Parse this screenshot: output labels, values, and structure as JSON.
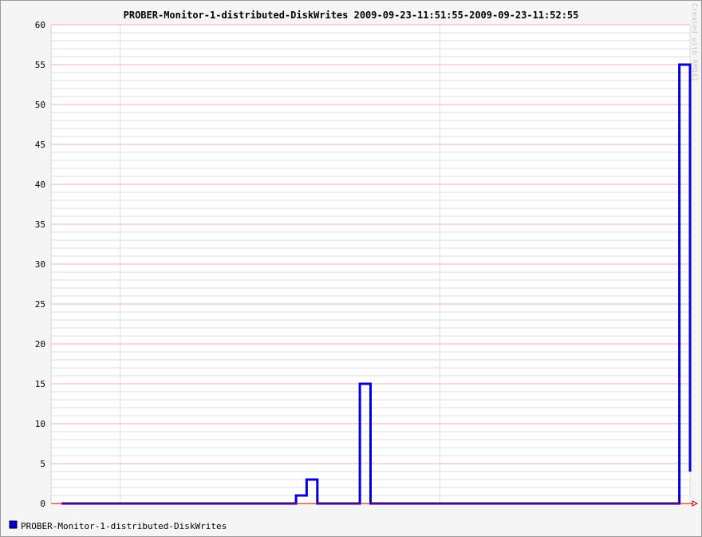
{
  "chart_data": {
    "type": "line",
    "title": "PROBER-Monitor-1-distributed-DiskWrites 2009-09-23-11:51:55-2009-09-23-11:52:55",
    "xlabel": "",
    "ylabel": "",
    "xlim": [
      0,
      60
    ],
    "ylim": [
      0,
      60
    ],
    "y_ticks": [
      "0",
      "5",
      "10",
      "15",
      "20",
      "25",
      "30",
      "35",
      "40",
      "45",
      "50",
      "55",
      "60"
    ],
    "grid": true,
    "legend_position": "bottom-left",
    "step": true,
    "series": [
      {
        "name": "PROBER-Monitor-1-distributed-DiskWrites",
        "color": "#0000dd",
        "x": [
          1,
          22,
          23,
          24,
          25,
          26,
          27,
          28,
          29,
          30,
          31,
          32,
          33,
          34,
          35,
          36,
          37,
          38,
          39,
          40,
          41,
          42,
          43,
          44,
          45,
          46,
          47,
          48,
          49,
          50,
          51,
          52,
          53,
          54,
          55,
          56,
          57,
          58,
          59,
          60
        ],
        "values": [
          0,
          0,
          1,
          3,
          0,
          0,
          0,
          0,
          15,
          0,
          0,
          0,
          0,
          0,
          0,
          0,
          0,
          0,
          0,
          0,
          0,
          0,
          0,
          0,
          0,
          0,
          0,
          0,
          0,
          0,
          0,
          0,
          0,
          0,
          0,
          0,
          0,
          0,
          55,
          4
        ]
      }
    ],
    "watermark": "Created with RRD4J"
  },
  "colors": {
    "background": "#f5f5f5",
    "plot_background": "#ffffff",
    "major_grid": "#f0b0b0",
    "minor_grid": "#dcdcdc",
    "axis": "#cc0000",
    "series": "#0000dd"
  }
}
